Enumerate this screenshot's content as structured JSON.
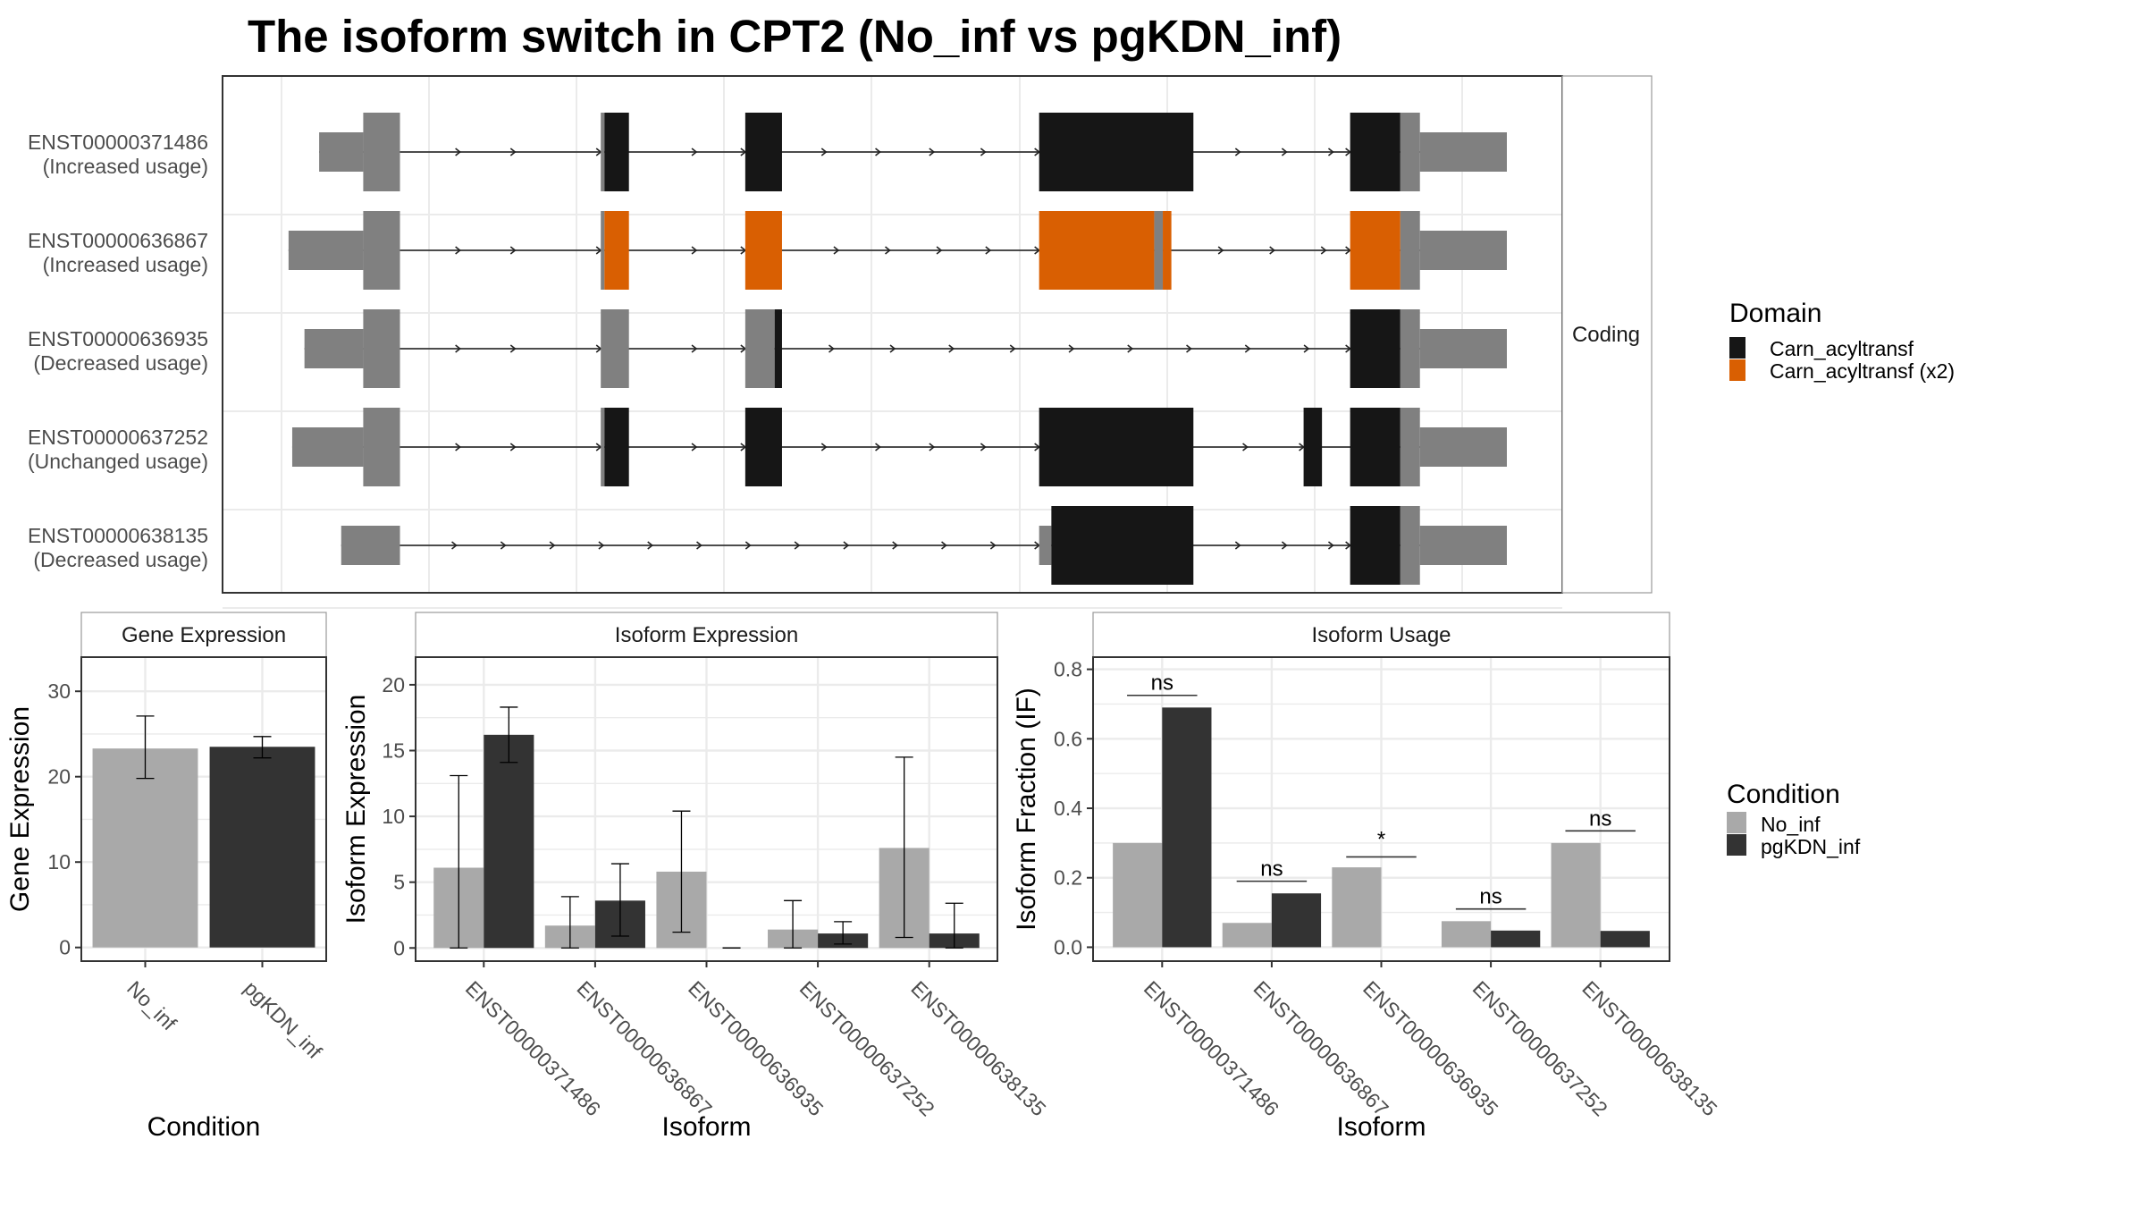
{
  "title": "The isoform switch in CPT2 (No_inf vs pgKDN_inf)",
  "colors": {
    "no_inf": "#a9a9a9",
    "pgkdn_inf": "#333333",
    "domain_carn": "#161616",
    "domain_carn_x2": "#d95f02",
    "utr": "#808080",
    "grid": "#ebebeb",
    "panel_border": "#333333",
    "strip_border": "#999999"
  },
  "chart_data": [
    {
      "type": "gene-structure",
      "facet_label": "Coding",
      "x_range": [
        0,
        100
      ],
      "transcripts": [
        {
          "id": "ENST00000371486",
          "status": "(Increased usage)",
          "span": [
            3,
            92
          ],
          "utr_blocks": [
            [
              3,
              6.6
            ],
            [
              6.6,
              9.6
            ],
            [
              26,
              26.3
            ],
            [
              92,
              92
            ]
          ],
          "exons": [
            {
              "start": 6.6,
              "end": 9.6,
              "type": "utr-tall"
            },
            {
              "start": 3,
              "end": 6.6,
              "type": "utr"
            },
            {
              "start": 26,
              "end": 26.3,
              "type": "utr-tall"
            },
            {
              "start": 26.3,
              "end": 28.3,
              "type": "carn"
            },
            {
              "start": 37.8,
              "end": 40.8,
              "type": "carn"
            },
            {
              "start": 61.8,
              "end": 74.4,
              "type": "carn"
            },
            {
              "start": 87.2,
              "end": 91.3,
              "type": "carn"
            },
            {
              "start": 91.3,
              "end": 92.9,
              "type": "utr-tall"
            },
            {
              "start": 92.9,
              "end": 100,
              "type": "utr"
            }
          ],
          "arrows": [
            14.5,
            19.0,
            26.0,
            33.8,
            37.8,
            44.4,
            48.8,
            53.2,
            57.4,
            61.8,
            78.2,
            82.0,
            85.8,
            87.2
          ]
        },
        {
          "id": "ENST00000636867",
          "status": "(Increased usage)",
          "exons": [
            {
              "start": 0.5,
              "end": 6.6,
              "type": "utr"
            },
            {
              "start": 6.6,
              "end": 9.6,
              "type": "utr-tall"
            },
            {
              "start": 26,
              "end": 26.3,
              "type": "utr-tall"
            },
            {
              "start": 26.3,
              "end": 28.3,
              "type": "carn_x2"
            },
            {
              "start": 37.8,
              "end": 40.8,
              "type": "carn_x2"
            },
            {
              "start": 61.8,
              "end": 71.2,
              "type": "carn_x2"
            },
            {
              "start": 71.2,
              "end": 71.9,
              "type": "utr-tall"
            },
            {
              "start": 71.9,
              "end": 72.6,
              "type": "carn_x2"
            },
            {
              "start": 87.2,
              "end": 91.3,
              "type": "carn_x2"
            },
            {
              "start": 91.3,
              "end": 92.9,
              "type": "utr-tall"
            },
            {
              "start": 92.9,
              "end": 100,
              "type": "utr"
            }
          ],
          "arrows": [
            14.5,
            19.0,
            26.0,
            33.8,
            37.8,
            45.4,
            49.6,
            53.8,
            57.8,
            61.8,
            76.8,
            81.0,
            85.2,
            87.2
          ]
        },
        {
          "id": "ENST00000636935",
          "status": "(Decreased usage)",
          "exons": [
            {
              "start": 1.8,
              "end": 6.6,
              "type": "utr"
            },
            {
              "start": 6.6,
              "end": 9.6,
              "type": "utr-tall"
            },
            {
              "start": 26,
              "end": 28.3,
              "type": "utr-tall"
            },
            {
              "start": 37.8,
              "end": 40.2,
              "type": "utr-tall"
            },
            {
              "start": 40.2,
              "end": 40.8,
              "type": "carn"
            },
            {
              "start": 87.2,
              "end": 91.3,
              "type": "carn"
            },
            {
              "start": 91.3,
              "end": 92.9,
              "type": "utr-tall"
            },
            {
              "start": 92.9,
              "end": 100,
              "type": "utr"
            }
          ],
          "arrows": [
            14.5,
            19.0,
            26.0,
            33.8,
            37.8,
            45.0,
            50.0,
            54.8,
            59.8,
            64.6,
            69.4,
            74.2,
            79.0,
            83.8,
            87.2
          ]
        },
        {
          "id": "ENST00000637252",
          "status": "(Unchanged usage)",
          "exons": [
            {
              "start": 0.8,
              "end": 6.6,
              "type": "utr"
            },
            {
              "start": 6.6,
              "end": 9.6,
              "type": "utr-tall"
            },
            {
              "start": 26,
              "end": 26.3,
              "type": "utr-tall"
            },
            {
              "start": 26.3,
              "end": 28.3,
              "type": "carn"
            },
            {
              "start": 37.8,
              "end": 40.8,
              "type": "carn"
            },
            {
              "start": 61.8,
              "end": 74.4,
              "type": "carn"
            },
            {
              "start": 83.4,
              "end": 84.9,
              "type": "carn"
            },
            {
              "start": 87.2,
              "end": 91.3,
              "type": "carn"
            },
            {
              "start": 91.3,
              "end": 92.9,
              "type": "utr-tall"
            },
            {
              "start": 92.9,
              "end": 100,
              "type": "utr"
            }
          ],
          "arrows": [
            14.5,
            19.0,
            26.0,
            33.8,
            37.8,
            44.4,
            48.8,
            53.2,
            57.4,
            61.8,
            78.8,
            83.4
          ]
        },
        {
          "id": "ENST00000638135",
          "status": "(Decreased usage)",
          "exons": [
            {
              "start": 4.8,
              "end": 9.6,
              "type": "utr"
            },
            {
              "start": 61.8,
              "end": 62.8,
              "type": "utr"
            },
            {
              "start": 62.8,
              "end": 74.4,
              "type": "carn"
            },
            {
              "start": 87.2,
              "end": 91.3,
              "type": "carn"
            },
            {
              "start": 91.3,
              "end": 92.9,
              "type": "utr-tall"
            },
            {
              "start": 92.9,
              "end": 100,
              "type": "utr"
            }
          ],
          "arrows": [
            14.2,
            18.2,
            22.2,
            26.2,
            30.2,
            34.2,
            38.2,
            42.2,
            46.2,
            50.2,
            54.2,
            58.2,
            61.8,
            78.2,
            82.0,
            85.8,
            87.2
          ]
        }
      ],
      "legend": {
        "title": "Domain",
        "placement": "right",
        "entries": [
          {
            "label": "Carn_acyltransf",
            "color": "#161616"
          },
          {
            "label": "Carn_acyltransf (x2)",
            "color": "#d95f02"
          }
        ]
      }
    },
    {
      "type": "bar",
      "title": "Gene Expression",
      "xlabel": "Condition",
      "ylabel": "Gene Expression",
      "categories": [
        "No_inf",
        "pgKDN_inf"
      ],
      "values": [
        23.3,
        23.5
      ],
      "error_low": [
        19.8,
        22.2
      ],
      "error_high": [
        27.1,
        24.7
      ],
      "ylim": [
        -1.6,
        34
      ],
      "yticks": [
        0,
        10,
        20,
        30
      ],
      "grid": true
    },
    {
      "type": "bar",
      "title": "Isoform Expression",
      "xlabel": "Isoform",
      "ylabel": "Isoform Expression",
      "categories": [
        "ENST00000371486",
        "ENST00000636867",
        "ENST00000636935",
        "ENST00000637252",
        "ENST00000638135"
      ],
      "series": [
        {
          "name": "No_inf",
          "values": [
            6.1,
            1.7,
            5.8,
            1.4,
            7.6
          ],
          "error_low": [
            0.0,
            0.0,
            1.2,
            0.0,
            0.8
          ],
          "error_high": [
            13.1,
            3.9,
            10.4,
            3.6,
            14.5
          ]
        },
        {
          "name": "pgKDN_inf",
          "values": [
            16.2,
            3.6,
            0.0,
            1.1,
            1.1
          ],
          "error_low": [
            14.1,
            0.9,
            0.0,
            0.3,
            0.0
          ],
          "error_high": [
            18.3,
            6.4,
            0.0,
            2.0,
            3.4
          ]
        }
      ],
      "ylim": [
        -1.0,
        22.1
      ],
      "yticks": [
        0,
        5,
        10,
        15,
        20
      ],
      "grid": true
    },
    {
      "type": "bar",
      "title": "Isoform Usage",
      "xlabel": "Isoform",
      "ylabel": "Isoform Fraction (IF)",
      "categories": [
        "ENST00000371486",
        "ENST00000636867",
        "ENST00000636935",
        "ENST00000637252",
        "ENST00000638135"
      ],
      "series": [
        {
          "name": "No_inf",
          "values": [
            0.3,
            0.07,
            0.23,
            0.075,
            0.3
          ]
        },
        {
          "name": "pgKDN_inf",
          "values": [
            0.69,
            0.155,
            0.0,
            0.048,
            0.047
          ]
        }
      ],
      "significance": [
        {
          "label": "ns",
          "y": 0.725
        },
        {
          "label": "ns",
          "y": 0.19
        },
        {
          "label": "*",
          "y": 0.26
        },
        {
          "label": "ns",
          "y": 0.11
        },
        {
          "label": "ns",
          "y": 0.335
        }
      ],
      "ylim": [
        -0.04,
        0.835
      ],
      "yticks": [
        0.0,
        0.2,
        0.4,
        0.6,
        0.8
      ],
      "ytick_labels": [
        "0.0",
        "0.2",
        "0.4",
        "0.6",
        "0.8"
      ],
      "grid": true
    }
  ],
  "condition_legend": {
    "title": "Condition",
    "placement": "right",
    "entries": [
      {
        "label": "No_inf",
        "color": "#a9a9a9"
      },
      {
        "label": "pgKDN_inf",
        "color": "#333333"
      }
    ]
  }
}
